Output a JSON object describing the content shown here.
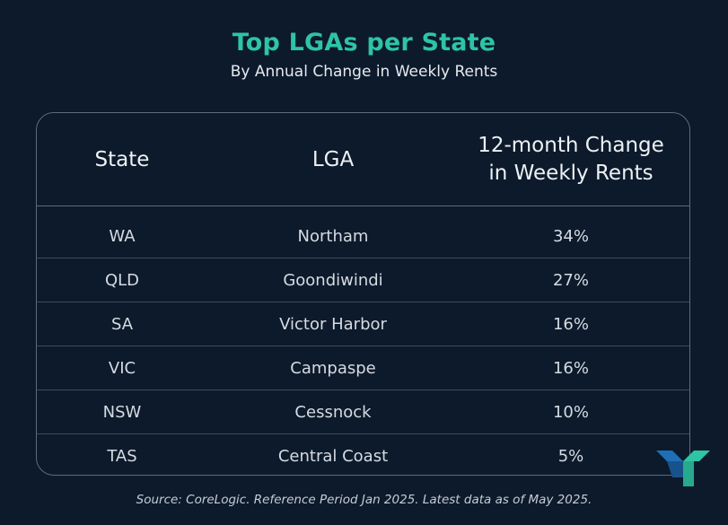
{
  "header": {
    "title": "Top LGAs per State",
    "subtitle": "By Annual Change in Weekly Rents"
  },
  "table": {
    "columns": [
      "State",
      "LGA",
      "12-month Change\nin  Weekly Rents"
    ],
    "rows": [
      {
        "state": "WA",
        "lga": "Northam",
        "change": "34%"
      },
      {
        "state": "QLD",
        "lga": "Goondiwindi",
        "change": "27%"
      },
      {
        "state": "SA",
        "lga": "Victor Harbor",
        "change": "16%"
      },
      {
        "state": "VIC",
        "lga": "Campaspe",
        "change": "16%"
      },
      {
        "state": "NSW",
        "lga": "Cessnock",
        "change": "10%"
      },
      {
        "state": "TAS",
        "lga": "Central Coast",
        "change": "5%"
      }
    ]
  },
  "footer": {
    "source": "Source: CoreLogic. Reference Period Jan 2025. Latest data as of May 2025."
  },
  "logo": {
    "icon": "brand-logo-icon",
    "colors": [
      "#1f6fb8",
      "#2ec4a4"
    ]
  }
}
